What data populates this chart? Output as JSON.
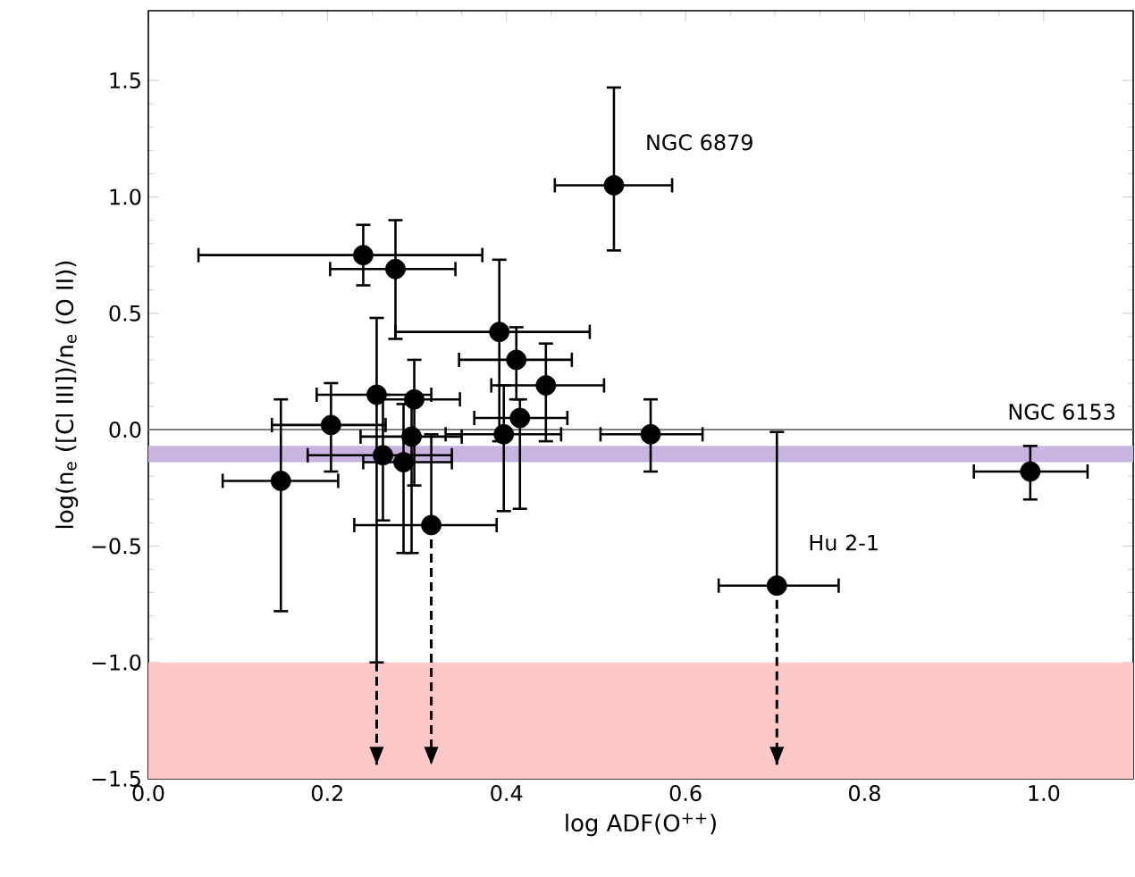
{
  "chart_data": {
    "type": "scatter",
    "xlabel": "log ADF(O$^{++}$)",
    "ylabel": "log(n$_{e}$ ([Cl III])/n$_{e}$ (O II))",
    "xlim": [
      0,
      1.1
    ],
    "ylim": [
      -1.5,
      1.8
    ],
    "xticks": [
      {
        "value": 0,
        "label": "0.0"
      },
      {
        "value": 0.2,
        "label": "0.2"
      },
      {
        "value": 0.4,
        "label": "0.4"
      },
      {
        "value": 0.6,
        "label": "0.6"
      },
      {
        "value": 0.8,
        "label": "0.8"
      },
      {
        "value": 1.0,
        "label": "1.0"
      }
    ],
    "yticks": [
      {
        "value": -1.5,
        "label": "−1.5"
      },
      {
        "value": -1.0,
        "label": "−1.0"
      },
      {
        "value": -0.5,
        "label": "−0.5"
      },
      {
        "value": 0,
        "label": "0.0"
      },
      {
        "value": 0.5,
        "label": "0.5"
      },
      {
        "value": 1.0,
        "label": "1.0"
      },
      {
        "value": 1.5,
        "label": "1.5"
      }
    ],
    "series": [
      {
        "type": "scatter",
        "marker": "circle",
        "color": "#000000",
        "x": [
          0.24,
          0.276,
          0.52,
          0.392,
          0.411,
          0.444,
          0.415,
          0.397,
          0.561,
          0.985,
          0.702,
          0.148,
          0.204,
          0.255,
          0.297,
          0.294,
          0.262,
          0.285,
          0.316
        ],
        "values": [
          0.75,
          0.69,
          1.05,
          0.42,
          0.3,
          0.19,
          0.05,
          -0.02,
          -0.02,
          -0.18,
          -0.67,
          -0.22,
          0.02,
          0.15,
          0.13,
          -0.03,
          -0.11,
          -0.14,
          -0.41
        ],
        "xerrors": [
          [
            0.056,
            0.373
          ],
          [
            0.203,
            0.343
          ],
          [
            0.454,
            0.585
          ],
          [
            0.276,
            0.493
          ],
          [
            0.347,
            0.473
          ],
          [
            0.383,
            0.509
          ],
          [
            0.364,
            0.468
          ],
          [
            0.332,
            0.461
          ],
          [
            0.505,
            0.619
          ],
          [
            0.922,
            1.049
          ],
          [
            0.637,
            0.771
          ],
          [
            0.083,
            0.212
          ],
          [
            0.138,
            0.265
          ],
          [
            0.188,
            0.316
          ],
          [
            0.255,
            0.348
          ],
          [
            0.237,
            0.35
          ],
          [
            0.178,
            0.339
          ],
          [
            0.24,
            0.339
          ],
          [
            0.23,
            0.389
          ]
        ],
        "errors": [
          [
            0.62,
            0.88
          ],
          [
            0.39,
            0.9
          ],
          [
            0.77,
            1.47
          ],
          [
            -0.05,
            0.73
          ],
          [
            0.13,
            0.44
          ],
          [
            -0.05,
            0.37
          ],
          [
            -0.34,
            0.13
          ],
          [
            -0.35,
            0.19
          ],
          [
            -0.18,
            0.13
          ],
          [
            -0.3,
            -0.07
          ],
          [
            -0.67,
            -0.01
          ],
          [
            -0.78,
            0.13
          ],
          [
            -0.18,
            0.2
          ],
          [
            -1.0,
            0.48
          ],
          [
            -0.24,
            0.3
          ],
          [
            -0.53,
            0.12
          ],
          [
            -0.39,
            0.15
          ],
          [
            -0.53,
            0.11
          ],
          [
            -0.41,
            -0.02
          ]
        ]
      },
      {
        "type": "line",
        "line_style": "dashed",
        "marker": "none",
        "color": "#000000",
        "x": [
          0.255,
          0.255
        ],
        "values": [
          -1.0,
          -1.44
        ]
      },
      {
        "type": "line",
        "line_style": "dashed",
        "marker": "none",
        "color": "#000000",
        "x": [
          0.316,
          0.316
        ],
        "values": [
          -0.41,
          -1.44
        ]
      },
      {
        "type": "line",
        "line_style": "dashed",
        "marker": "none",
        "color": "#000000",
        "x": [
          0.702,
          0.702
        ],
        "values": [
          -0.67,
          -1.44
        ]
      }
    ],
    "ref_lines": [
      {
        "axis": "y",
        "value": 0,
        "label": "NGC 6153",
        "color": "#808080"
      }
    ],
    "bands": [
      {
        "axis": "y",
        "from": -0.14,
        "to": -0.07,
        "color": "#c8b4e0"
      },
      {
        "axis": "y",
        "from": -1.5,
        "to": -1.0,
        "color": "#ffc8c8"
      }
    ],
    "annotations": [
      {
        "text": "NGC 6879",
        "x": 0.52,
        "y": 1.05
      },
      {
        "text": "Hu 2-1",
        "x": 0.702,
        "y": -0.67
      }
    ]
  }
}
